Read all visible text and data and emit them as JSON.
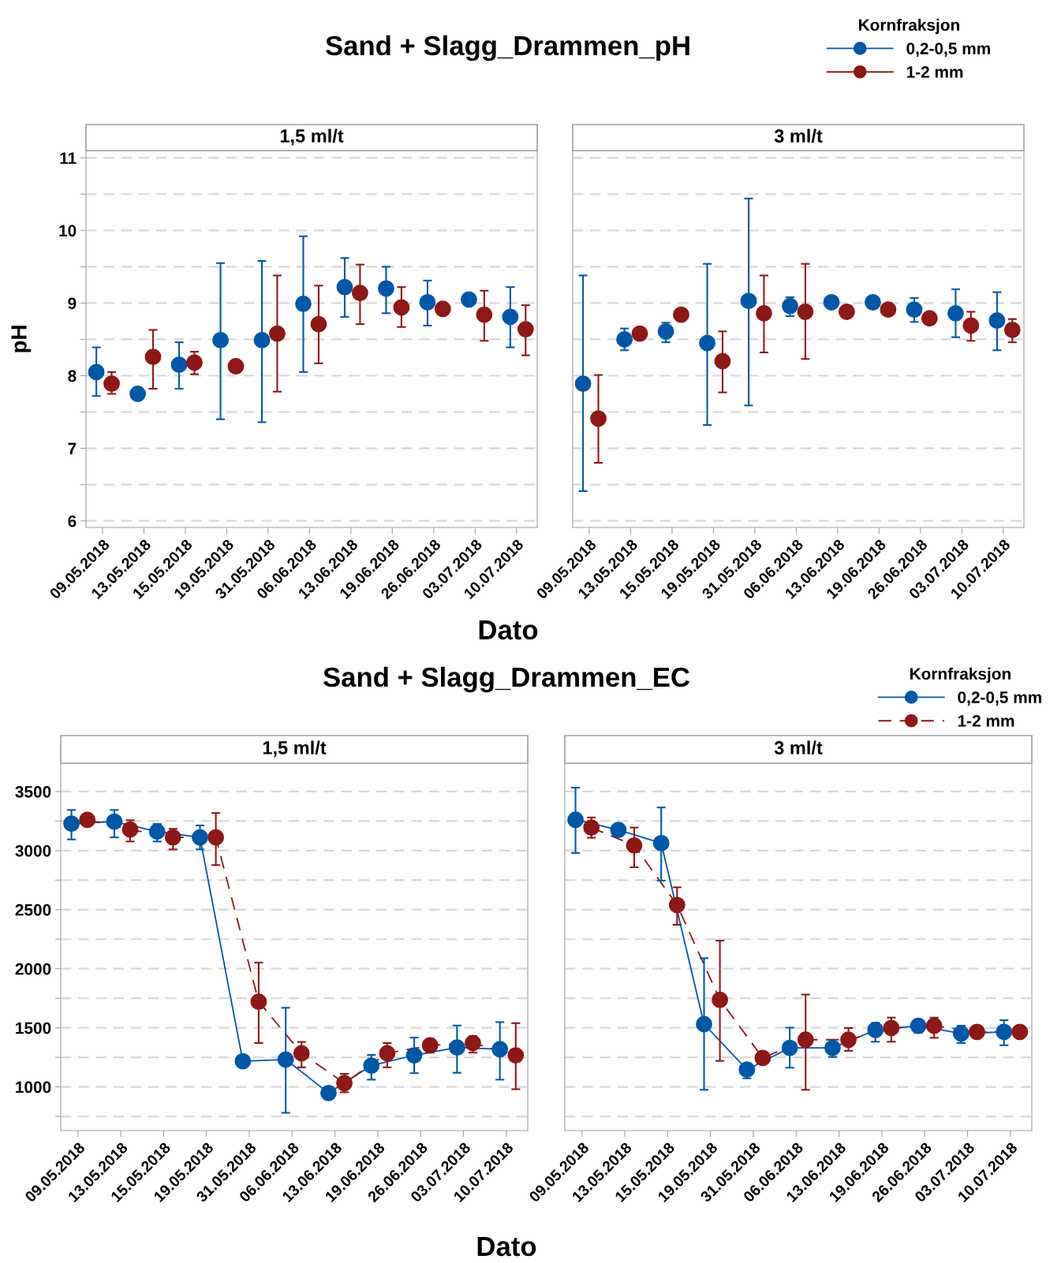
{
  "chart_data": [
    {
      "type": "scatter",
      "title": "Sand + Slagg_Drammen_pH",
      "subtitle": "1,5 ml/t",
      "xlabel": "Dato",
      "ylabel": "pH",
      "legend_title": "Kornfraksjon",
      "legend": "top right",
      "marker": "circle",
      "grid": "y",
      "categories": [
        "09.05.2018",
        "13.05.2018",
        "15.05.2018",
        "19.05.2018",
        "31.05.2018",
        "06.06.2018",
        "13.06.2018",
        "19.06.2018",
        "26.06.2018",
        "03.07.2018",
        "10.07.2018"
      ],
      "ylim": [
        5.91,
        11.1
      ],
      "yticks": [
        6,
        {
          "value": 6.5,
          "label": null
        },
        7,
        {
          "value": 7.5,
          "label": null
        },
        8,
        {
          "value": 8.5,
          "label": null
        },
        9,
        {
          "value": 9.5,
          "label": null
        },
        10,
        {
          "value": 10.5,
          "label": null
        },
        11
      ],
      "series": [
        {
          "name": "0,2-0,5 mm",
          "color": "#0057a8",
          "values": [
            8.05,
            7.75,
            8.15,
            8.49,
            8.49,
            8.99,
            9.22,
            9.2,
            9.01,
            9.05,
            8.81
          ],
          "errors": [
            [
              7.72,
              8.39
            ],
            null,
            [
              7.82,
              8.46
            ],
            [
              7.4,
              9.55
            ],
            [
              7.36,
              9.58
            ],
            [
              8.05,
              9.92
            ],
            [
              8.81,
              9.62
            ],
            [
              8.86,
              9.5
            ],
            [
              8.69,
              9.31
            ],
            null,
            [
              8.39,
              9.22
            ]
          ]
        },
        {
          "name": "1-2 mm",
          "color": "#8e1717",
          "values": [
            7.89,
            8.26,
            8.18,
            8.13,
            8.58,
            8.71,
            9.14,
            8.94,
            8.92,
            8.84,
            8.64
          ],
          "errors": [
            [
              7.75,
              8.05
            ],
            [
              7.82,
              8.63
            ],
            [
              8.02,
              8.33
            ],
            null,
            [
              7.78,
              9.38
            ],
            [
              8.17,
              9.24
            ],
            [
              8.71,
              9.53
            ],
            [
              8.67,
              9.22
            ],
            null,
            [
              8.48,
              9.17
            ],
            [
              8.28,
              8.97
            ]
          ]
        }
      ]
    },
    {
      "type": "scatter",
      "subtitle": "3 ml/t",
      "marker": "circle",
      "grid": "y",
      "tick_labels": "x",
      "categories": [
        "09.05.2018",
        "13.05.2018",
        "15.05.2018",
        "19.05.2018",
        "31.05.2018",
        "06.06.2018",
        "13.06.2018",
        "19.06.2018",
        "26.06.2018",
        "03.07.2018",
        "10.07.2018"
      ],
      "ylim": [
        5.91,
        11.1
      ],
      "yticks": [
        6,
        {
          "value": 6.5,
          "label": null
        },
        7,
        {
          "value": 7.5,
          "label": null
        },
        8,
        {
          "value": 8.5,
          "label": null
        },
        9,
        {
          "value": 9.5,
          "label": null
        },
        10,
        {
          "value": 10.5,
          "label": null
        },
        11
      ],
      "series": [
        {
          "color": "#0057a8",
          "values": [
            7.89,
            8.5,
            8.61,
            8.45,
            9.03,
            8.96,
            9.01,
            9.01,
            8.91,
            8.86,
            8.76
          ],
          "errors": [
            [
              6.41,
              9.38
            ],
            [
              8.35,
              8.65
            ],
            [
              8.46,
              8.73
            ],
            [
              7.32,
              9.54
            ],
            [
              7.59,
              10.44
            ],
            [
              8.82,
              9.08
            ],
            null,
            null,
            [
              8.74,
              9.07
            ],
            [
              8.53,
              9.19
            ],
            [
              8.35,
              9.15
            ]
          ]
        },
        {
          "color": "#8e1717",
          "values": [
            7.41,
            8.58,
            8.84,
            8.2,
            8.86,
            8.88,
            8.88,
            8.91,
            8.79,
            8.69,
            8.63
          ],
          "errors": [
            [
              6.8,
              8.01
            ],
            null,
            null,
            [
              7.77,
              8.61
            ],
            [
              8.32,
              9.38
            ],
            [
              8.23,
              9.54
            ],
            null,
            null,
            null,
            [
              8.48,
              8.88
            ],
            [
              8.46,
              8.78
            ]
          ]
        }
      ]
    },
    {
      "type": "line",
      "title": "Sand + Slagg_Drammen_EC",
      "subtitle": "1,5 ml/t",
      "xlabel": "Dato",
      "legend_title": "Kornfraksjon",
      "legend": "top right",
      "marker": "circle",
      "grid": "y",
      "categories": [
        "09.05.2018",
        "13.05.2018",
        "15.05.2018",
        "19.05.2018",
        "31.05.2018",
        "06.06.2018",
        "13.06.2018",
        "19.06.2018",
        "26.06.2018",
        "03.07.2018",
        "10.07.2018"
      ],
      "ylim": [
        630,
        3740
      ],
      "yticks": [
        {
          "value": 750,
          "label": null
        },
        1000,
        {
          "value": 1250,
          "label": null
        },
        1500,
        {
          "value": 1750,
          "label": null
        },
        2000,
        {
          "value": 2250,
          "label": null
        },
        2500,
        {
          "value": 2750,
          "label": null
        },
        3000,
        {
          "value": 3250,
          "label": null
        },
        3500
      ],
      "series": [
        {
          "name": "0,2-0,5 mm",
          "color": "#0057a8",
          "line_style": "solid",
          "values": [
            3228,
            3245,
            3161,
            3112,
            1217,
            1232,
            948,
            1180,
            1267,
            1333,
            1319
          ],
          "errors": [
            [
              3094,
              3344
            ],
            [
              3112,
              3344
            ],
            [
              3077,
              3225
            ],
            [
              3010,
              3213
            ],
            null,
            [
              780,
              1669
            ],
            null,
            [
              1061,
              1270
            ],
            [
              1116,
              1417
            ],
            [
              1119,
              1519
            ],
            [
              1061,
              1548
            ]
          ]
        },
        {
          "name": "1-2 mm",
          "color": "#8e1717",
          "line_style": "dashed",
          "values": [
            3260,
            3178,
            3112,
            3112,
            1721,
            1284,
            1032,
            1284,
            1351,
            1371,
            1267
          ],
          "errors": [
            null,
            [
              3077,
              3257
            ],
            [
              3010,
              3184
            ],
            [
              2877,
              3318
            ],
            [
              1371,
              2052
            ],
            [
              1165,
              1380
            ],
            [
              954,
              1110
            ],
            [
              1165,
              1371
            ],
            [
              1290,
              1406
            ],
            [
              1290,
              1429
            ],
            [
              980,
              1539
            ]
          ]
        }
      ]
    },
    {
      "type": "line",
      "subtitle": "3 ml/t",
      "marker": "circle",
      "grid": "y",
      "tick_labels": "x",
      "categories": [
        "09.05.2018",
        "13.05.2018",
        "15.05.2018",
        "19.05.2018",
        "31.05.2018",
        "06.06.2018",
        "13.06.2018",
        "19.06.2018",
        "26.06.2018",
        "03.07.2018",
        "10.07.2018"
      ],
      "ylim": [
        630,
        3740
      ],
      "yticks": [
        {
          "value": 750,
          "label": null
        },
        1000,
        {
          "value": 1250,
          "label": null
        },
        1500,
        {
          "value": 1750,
          "label": null
        },
        2000,
        {
          "value": 2250,
          "label": null
        },
        2500,
        {
          "value": 2750,
          "label": null
        },
        3000,
        {
          "value": 3250,
          "label": null
        },
        3500
      ],
      "series": [
        {
          "color": "#0057a8",
          "line_style": "solid",
          "values": [
            3261,
            3175,
            3063,
            1531,
            1146,
            1330,
            1330,
            1481,
            1517,
            1451,
            1465
          ],
          "errors": [
            [
              2980,
              3533
            ],
            null,
            [
              2746,
              3365
            ],
            [
              975,
              2089
            ],
            [
              1072,
              1146
            ],
            [
              1162,
              1501
            ],
            [
              1253,
              1330
            ],
            [
              1382,
              1542
            ],
            [
              1457,
              1560
            ],
            [
              1371,
              1517
            ],
            [
              1352,
              1564
            ]
          ]
        },
        {
          "color": "#8e1717",
          "line_style": "dashed",
          "values": [
            3195,
            3043,
            2540,
            1737,
            1245,
            1399,
            1399,
            1498,
            1517,
            1465,
            1465
          ],
          "errors": [
            [
              3109,
              3280
            ],
            [
              2859,
              3195
            ],
            [
              2372,
              2689
            ],
            [
              1220,
              2238
            ],
            null,
            [
              975,
              1781
            ],
            [
              1305,
              1498
            ],
            [
              1382,
              1586
            ],
            [
              1415,
              1586
            ],
            null,
            null
          ]
        }
      ]
    }
  ]
}
